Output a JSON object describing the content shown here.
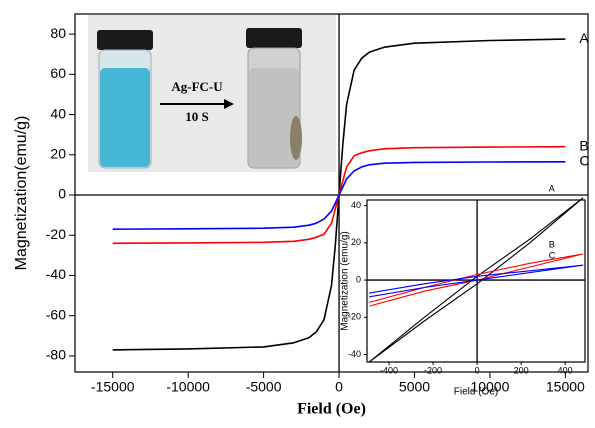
{
  "chart_data": [
    {
      "type": "line",
      "xlabel": "Field (Oe)",
      "ylabel": "Magnetization(emu/g)",
      "xlim": [
        -17500,
        16500
      ],
      "ylim": [
        -88,
        90
      ],
      "xticks": [
        -15000,
        -10000,
        -5000,
        0,
        5000,
        10000,
        15000
      ],
      "yticks": [
        -80,
        -60,
        -40,
        -20,
        0,
        20,
        40,
        60,
        80
      ],
      "x": [
        -15000,
        -10000,
        -5000,
        -3000,
        -2000,
        -1500,
        -1000,
        -500,
        -250,
        0,
        250,
        500,
        1000,
        1500,
        2000,
        3000,
        5000,
        10000,
        15000
      ],
      "series": [
        {
          "name": "A",
          "color": "#000000",
          "values": [
            -77,
            -76.5,
            -75.5,
            -73.5,
            -71,
            -68,
            -62,
            -45,
            -25,
            0,
            25,
            45,
            62,
            68,
            71,
            73.5,
            75.5,
            76.8,
            77.5
          ]
        },
        {
          "name": "B",
          "color": "#ff0000",
          "values": [
            -24,
            -23.8,
            -23.5,
            -23,
            -22,
            -21,
            -19.5,
            -14,
            -7,
            0,
            7,
            14,
            19.5,
            21,
            22,
            23,
            23.5,
            23.8,
            24
          ]
        },
        {
          "name": "C",
          "color": "#0000ff",
          "values": [
            -17,
            -16.8,
            -16.5,
            -16,
            -15,
            -14,
            -12,
            -8,
            -4,
            0,
            4,
            8,
            12,
            14,
            15,
            15.8,
            16.2,
            16.4,
            16.5
          ]
        }
      ],
      "annotations": [
        "Ag-FC-U",
        "10 S"
      ]
    },
    {
      "type": "line",
      "xlabel": "Field (Oe)",
      "ylabel": "Magnetization (emu/g)",
      "xlim": [
        -500,
        490
      ],
      "ylim": [
        -44,
        43
      ],
      "xticks": [
        -400,
        -200,
        0,
        200,
        400
      ],
      "yticks": [
        -40,
        -20,
        0,
        20,
        40
      ],
      "x": [
        -490,
        -240,
        0,
        240,
        480,
        240,
        0,
        -240,
        -490
      ],
      "series": [
        {
          "name": "A",
          "color": "#000000",
          "values": [
            -44,
            -22,
            -2,
            20,
            44,
            22,
            2,
            -20,
            -44
          ]
        },
        {
          "name": "B",
          "color": "#ff0000",
          "values": [
            -14,
            -6,
            0,
            7,
            14,
            9,
            3,
            -4,
            -12
          ]
        },
        {
          "name": "C",
          "color": "#0000ff",
          "values": [
            -9,
            -4,
            0,
            4,
            8,
            5,
            2,
            -2,
            -7
          ]
        }
      ]
    }
  ]
}
